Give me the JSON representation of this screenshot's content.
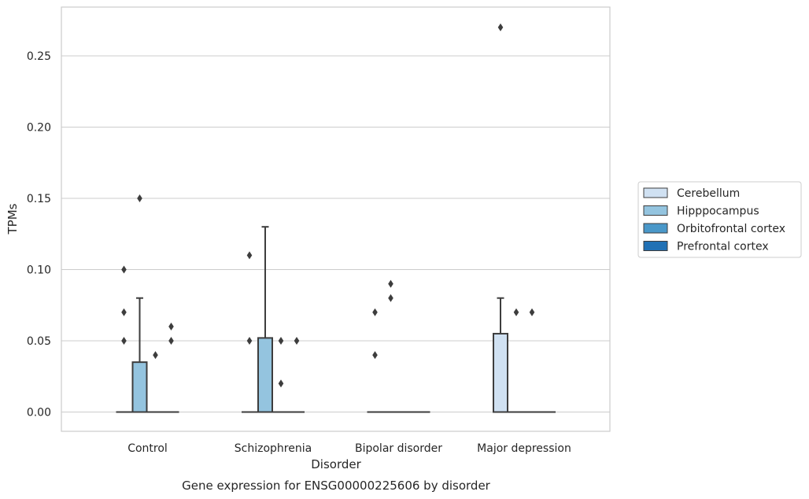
{
  "chart_data": {
    "type": "box",
    "title": "",
    "xlabel": "Disorder",
    "ylabel": "TPMs",
    "caption": "Gene expression for ENSG00000225606 by disorder",
    "categories": [
      "Control",
      "Schizophrenia",
      "Bipolar disorder",
      "Major depression"
    ],
    "ylim": [
      -0.013,
      0.284
    ],
    "yticks": [
      0.0,
      0.05,
      0.1,
      0.15,
      0.2,
      0.25
    ],
    "ytick_labels": [
      "0.00",
      "0.05",
      "0.10",
      "0.15",
      "0.20",
      "0.25"
    ],
    "grid": true,
    "legend_position": "right",
    "series": [
      {
        "name": "Cerebellum",
        "color": "#d0e1f2",
        "boxes": [
          {
            "category": "Control",
            "q1": 0,
            "median": 0,
            "q3": 0,
            "whisker_low": 0,
            "whisker_high": 0,
            "outliers": [
              0.1,
              0.07,
              0.05
            ]
          },
          {
            "category": "Schizophrenia",
            "q1": 0,
            "median": 0,
            "q3": 0,
            "whisker_low": 0,
            "whisker_high": 0,
            "outliers": [
              0.11,
              0.05
            ]
          },
          {
            "category": "Bipolar disorder",
            "q1": 0,
            "median": 0,
            "q3": 0,
            "whisker_low": 0,
            "whisker_high": 0,
            "outliers": [
              0.07,
              0.04
            ]
          },
          {
            "category": "Major depression",
            "q1": 0,
            "median": 0,
            "q3": 0.055,
            "whisker_low": 0,
            "whisker_high": 0.08,
            "outliers": [
              0.27
            ]
          }
        ]
      },
      {
        "name": "Hipppocampus",
        "color": "#94c4df",
        "boxes": [
          {
            "category": "Control",
            "q1": 0,
            "median": 0,
            "q3": 0.035,
            "whisker_low": 0,
            "whisker_high": 0.08,
            "outliers": [
              0.15
            ]
          },
          {
            "category": "Schizophrenia",
            "q1": 0,
            "median": 0,
            "q3": 0.052,
            "whisker_low": 0,
            "whisker_high": 0.13,
            "outliers": []
          },
          {
            "category": "Bipolar disorder",
            "q1": 0,
            "median": 0,
            "q3": 0,
            "whisker_low": 0,
            "whisker_high": 0,
            "outliers": [
              0.09,
              0.08
            ]
          },
          {
            "category": "Major depression",
            "q1": 0,
            "median": 0,
            "q3": 0,
            "whisker_low": 0,
            "whisker_high": 0,
            "outliers": [
              0.07
            ]
          }
        ]
      },
      {
        "name": "Orbitofrontal cortex",
        "color": "#4a98c9",
        "boxes": [
          {
            "category": "Control",
            "q1": 0,
            "median": 0,
            "q3": 0,
            "whisker_low": 0,
            "whisker_high": 0,
            "outliers": [
              0.04
            ]
          },
          {
            "category": "Schizophrenia",
            "q1": 0,
            "median": 0,
            "q3": 0,
            "whisker_low": 0,
            "whisker_high": 0,
            "outliers": [
              0.05,
              0.02
            ]
          },
          {
            "category": "Bipolar disorder",
            "q1": 0,
            "median": 0,
            "q3": 0,
            "whisker_low": 0,
            "whisker_high": 0,
            "outliers": []
          },
          {
            "category": "Major depression",
            "q1": 0,
            "median": 0,
            "q3": 0,
            "whisker_low": 0,
            "whisker_high": 0,
            "outliers": [
              0.07
            ]
          }
        ]
      },
      {
        "name": "Prefrontal cortex",
        "color": "#2171b5",
        "boxes": [
          {
            "category": "Control",
            "q1": 0,
            "median": 0,
            "q3": 0,
            "whisker_low": 0,
            "whisker_high": 0,
            "outliers": [
              0.06,
              0.05
            ]
          },
          {
            "category": "Schizophrenia",
            "q1": 0,
            "median": 0,
            "q3": 0,
            "whisker_low": 0,
            "whisker_high": 0,
            "outliers": [
              0.05
            ]
          },
          {
            "category": "Bipolar disorder",
            "q1": 0,
            "median": 0,
            "q3": 0,
            "whisker_low": 0,
            "whisker_high": 0,
            "outliers": []
          },
          {
            "category": "Major depression",
            "q1": 0,
            "median": 0,
            "q3": 0,
            "whisker_low": 0,
            "whisker_high": 0,
            "outliers": []
          }
        ]
      }
    ]
  }
}
